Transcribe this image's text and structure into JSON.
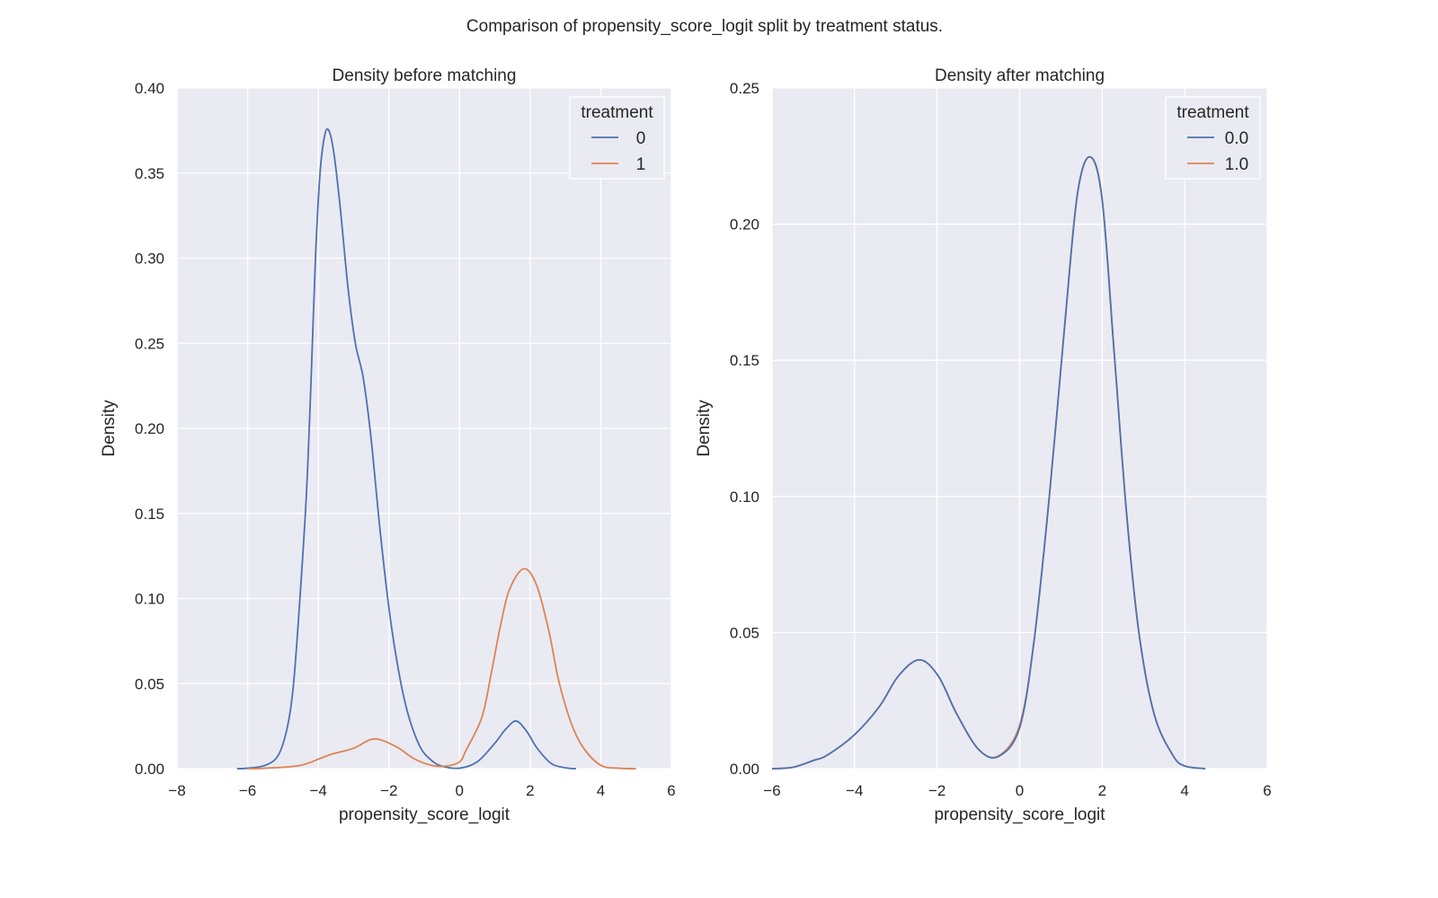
{
  "figure_title": "Comparison of propensity_score_logit split by treatment status.",
  "colors": {
    "axes_bg": "#eaeaf2",
    "grid": "#ffffff",
    "series_0": "#4c72b0",
    "series_1": "#dd8452"
  },
  "chart_data": [
    {
      "type": "line",
      "title": "Density before matching",
      "xlabel": "propensity_score_logit",
      "ylabel": "Density",
      "xlim": [
        -8,
        6
      ],
      "ylim": [
        0,
        0.4
      ],
      "xticks": [
        -8,
        -6,
        -4,
        -2,
        0,
        2,
        4,
        6
      ],
      "xtick_labels": [
        "−8",
        "−6",
        "−4",
        "−2",
        "0",
        "2",
        "4",
        "6"
      ],
      "yticks": [
        0,
        0.05,
        0.1,
        0.15,
        0.2,
        0.25,
        0.3,
        0.35,
        0.4
      ],
      "ytick_labels": [
        "0.00",
        "0.05",
        "0.10",
        "0.15",
        "0.20",
        "0.25",
        "0.30",
        "0.35",
        "0.40"
      ],
      "grid": true,
      "legend": {
        "title": "treatment",
        "placement": "top-right"
      },
      "series": [
        {
          "name": "0",
          "color": "#4c72b0",
          "x": [
            -6.3,
            -6.0,
            -5.5,
            -5.13,
            -4.87,
            -4.7,
            -4.52,
            -4.34,
            -4.21,
            -4.08,
            -3.95,
            -3.82,
            -3.7,
            -3.56,
            -3.38,
            -3.16,
            -2.95,
            -2.73,
            -2.51,
            -2.25,
            -1.99,
            -1.73,
            -1.47,
            -1.12,
            -0.8,
            -0.5,
            0.0,
            0.5,
            1.0,
            1.3,
            1.6,
            1.9,
            2.2,
            2.6,
            3.0,
            3.3
          ],
          "y": [
            0,
            0.0003,
            0.002,
            0.008,
            0.025,
            0.05,
            0.1,
            0.16,
            0.225,
            0.3,
            0.35,
            0.372,
            0.375,
            0.362,
            0.33,
            0.283,
            0.25,
            0.23,
            0.195,
            0.14,
            0.093,
            0.058,
            0.033,
            0.013,
            0.005,
            0.0015,
            0.0003,
            0.004,
            0.015,
            0.023,
            0.028,
            0.022,
            0.012,
            0.003,
            0.0005,
            0
          ]
        },
        {
          "name": "1",
          "color": "#dd8452",
          "x": [
            -6.0,
            -5.5,
            -4.5,
            -3.7,
            -3.0,
            -2.42,
            -1.8,
            -1.3,
            -0.8,
            -0.4,
            0.0,
            0.19,
            0.63,
            0.89,
            1.15,
            1.41,
            1.82,
            2.19,
            2.54,
            2.8,
            3.15,
            3.5,
            4.0,
            4.5,
            5.0
          ],
          "y": [
            0,
            0.0003,
            0.002,
            0.008,
            0.012,
            0.0175,
            0.013,
            0.006,
            0.002,
            0.0015,
            0.004,
            0.011,
            0.03,
            0.055,
            0.083,
            0.105,
            0.1175,
            0.1075,
            0.08,
            0.0525,
            0.0275,
            0.0125,
            0.002,
            0.0003,
            0
          ]
        }
      ]
    },
    {
      "type": "line",
      "title": "Density after matching",
      "xlabel": "propensity_score_logit",
      "ylabel": "Density",
      "xlim": [
        -6,
        6
      ],
      "ylim": [
        0,
        0.25
      ],
      "xticks": [
        -6,
        -4,
        -2,
        0,
        2,
        4,
        6
      ],
      "xtick_labels": [
        "−6",
        "−4",
        "−2",
        "0",
        "2",
        "4",
        "6"
      ],
      "yticks": [
        0,
        0.05,
        0.1,
        0.15,
        0.2,
        0.25
      ],
      "ytick_labels": [
        "0.00",
        "0.05",
        "0.10",
        "0.15",
        "0.20",
        "0.25"
      ],
      "grid": true,
      "legend": {
        "title": "treatment",
        "placement": "top-right"
      },
      "series": [
        {
          "name": "1.0",
          "color": "#dd8452",
          "x": [
            -6.0,
            -5.5,
            -5.0,
            -4.66,
            -4.0,
            -3.39,
            -2.94,
            -2.43,
            -1.97,
            -1.52,
            -0.99,
            -0.51,
            0.0,
            0.35,
            0.72,
            1.09,
            1.4,
            1.71,
            2.0,
            2.29,
            2.59,
            2.89,
            3.26,
            3.71,
            4.0,
            4.5
          ],
          "y": [
            0,
            0.0005,
            0.003,
            0.005,
            0.0125,
            0.023,
            0.034,
            0.04,
            0.034,
            0.02,
            0.007,
            0.0047,
            0.016,
            0.047,
            0.1,
            0.1625,
            0.211,
            0.2247,
            0.209,
            0.153,
            0.094,
            0.05,
            0.02,
            0.005,
            0.001,
            0
          ]
        },
        {
          "name": "0.0",
          "color": "#4c72b0",
          "x": [
            -6.0,
            -5.5,
            -5.0,
            -4.66,
            -4.0,
            -3.39,
            -2.94,
            -2.43,
            -1.97,
            -1.52,
            -0.99,
            -0.51,
            0.0,
            0.35,
            0.72,
            1.09,
            1.4,
            1.71,
            2.0,
            2.29,
            2.59,
            2.89,
            3.26,
            3.71,
            4.0,
            4.5
          ],
          "y": [
            0,
            0.0005,
            0.003,
            0.005,
            0.0125,
            0.023,
            0.034,
            0.04,
            0.034,
            0.02,
            0.007,
            0.0045,
            0.015,
            0.047,
            0.1,
            0.1625,
            0.211,
            0.2247,
            0.209,
            0.153,
            0.094,
            0.05,
            0.02,
            0.005,
            0.001,
            0
          ]
        }
      ],
      "legend_order": [
        "0.0",
        "1.0"
      ]
    }
  ]
}
